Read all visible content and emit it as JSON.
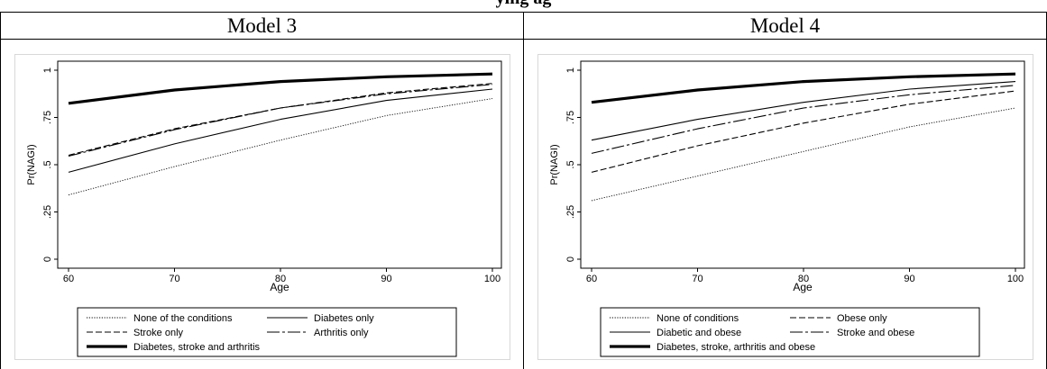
{
  "page": {
    "clipped_title": "ying ag"
  },
  "chart_data": [
    {
      "type": "line",
      "title": "Model 3",
      "xlabel": "Age",
      "ylabel": "Pr(NAGI)",
      "xlim": [
        60,
        100
      ],
      "ylim": [
        0,
        1
      ],
      "x_ticks": [
        "60",
        "70",
        "80",
        "90",
        "100"
      ],
      "y_ticks": [
        "0",
        ".25",
        ".5",
        ".75",
        "1"
      ],
      "grid": false,
      "legend_position": "bottom",
      "x": [
        60,
        70,
        80,
        90,
        100
      ],
      "series": [
        {
          "name": "None of the conditions",
          "style": "dotted",
          "values": [
            0.34,
            0.49,
            0.63,
            0.76,
            0.85
          ]
        },
        {
          "name": "Diabetes only",
          "style": "solid",
          "values": [
            0.46,
            0.61,
            0.74,
            0.84,
            0.9
          ]
        },
        {
          "name": "Stroke only",
          "style": "short-dash",
          "values": [
            0.55,
            0.69,
            0.8,
            0.88,
            0.93
          ]
        },
        {
          "name": "Arthritis only",
          "style": "long-dash",
          "values": [
            0.545,
            0.685,
            0.8,
            0.875,
            0.925
          ]
        },
        {
          "name": "Diabetes, stroke and arthritis",
          "style": "thick",
          "values": [
            0.825,
            0.895,
            0.94,
            0.965,
            0.98
          ]
        }
      ]
    },
    {
      "type": "line",
      "title": "Model 4",
      "xlabel": "Age",
      "ylabel": "Pr(NAGI)",
      "xlim": [
        60,
        100
      ],
      "ylim": [
        0,
        1
      ],
      "x_ticks": [
        "60",
        "70",
        "80",
        "90",
        "100"
      ],
      "y_ticks": [
        "0",
        ".25",
        ".5",
        ".75",
        "1"
      ],
      "grid": false,
      "legend_position": "bottom",
      "x": [
        60,
        70,
        80,
        90,
        100
      ],
      "series": [
        {
          "name": "None of conditions",
          "style": "dotted",
          "values": [
            0.31,
            0.44,
            0.57,
            0.7,
            0.8
          ]
        },
        {
          "name": "Obese only",
          "style": "short-dash",
          "values": [
            0.46,
            0.6,
            0.72,
            0.82,
            0.89
          ]
        },
        {
          "name": "Diabetic and obese",
          "style": "solid",
          "values": [
            0.63,
            0.74,
            0.83,
            0.9,
            0.94
          ]
        },
        {
          "name": "Stroke and obese",
          "style": "long-dash",
          "values": [
            0.56,
            0.69,
            0.8,
            0.87,
            0.92
          ]
        },
        {
          "name": "Diabetes, stroke, arthritis and obese",
          "style": "thick",
          "values": [
            0.83,
            0.895,
            0.94,
            0.965,
            0.98
          ]
        }
      ]
    }
  ]
}
